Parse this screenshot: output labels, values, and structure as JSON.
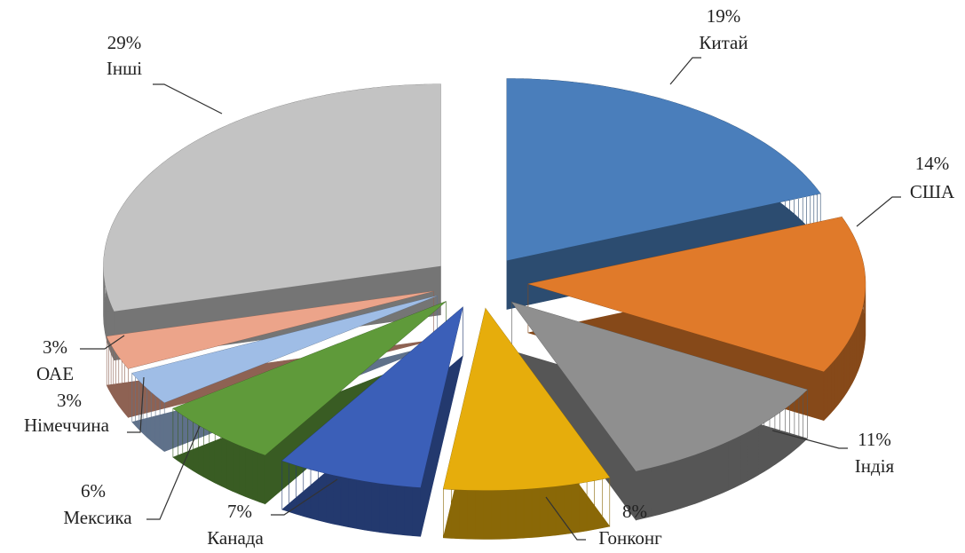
{
  "chart_data": {
    "type": "pie3d",
    "categories": [
      "Китай",
      "США",
      "Індія",
      "Гонконг",
      "Канада",
      "Мексика",
      "Німеччина",
      "ОАЕ",
      "Інші"
    ],
    "values": [
      19,
      14,
      11,
      8,
      7,
      6,
      3,
      3,
      29
    ],
    "value_labels": [
      "19%",
      "14%",
      "11%",
      "8%",
      "7%",
      "6%",
      "3%",
      "3%",
      "29%"
    ],
    "colors": [
      "#4a7ebb",
      "#e07a2a",
      "#8f8f8f",
      "#e6ad0c",
      "#3b5fb8",
      "#5f9a3a",
      "#9fbde6",
      "#eca48a",
      "#c3c3c3"
    ]
  }
}
